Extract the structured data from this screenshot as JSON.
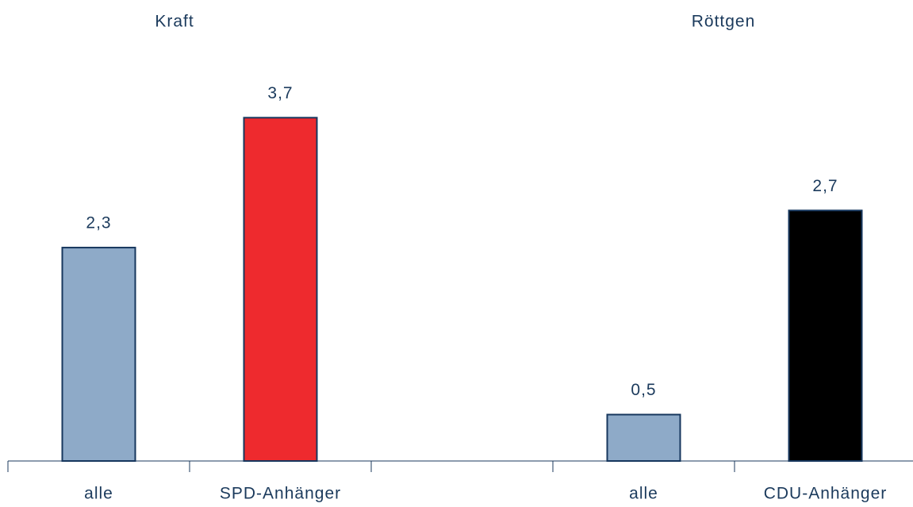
{
  "chart_data": {
    "type": "bar",
    "annotations": [
      "Kraft",
      "Röttgen"
    ],
    "categories": [
      "alle",
      "SPD-Anhänger",
      null,
      "alle",
      "CDU-Anhänger"
    ],
    "values": [
      2.3,
      3.7,
      null,
      0.5,
      2.7
    ],
    "value_labels": [
      "2,3",
      "3,7",
      null,
      "0,5",
      "2,7"
    ],
    "colors": [
      "#8eaac8",
      "#ee2a2e",
      null,
      "#8eaac8",
      "#000000"
    ],
    "ylim": [
      0,
      4.9
    ]
  }
}
